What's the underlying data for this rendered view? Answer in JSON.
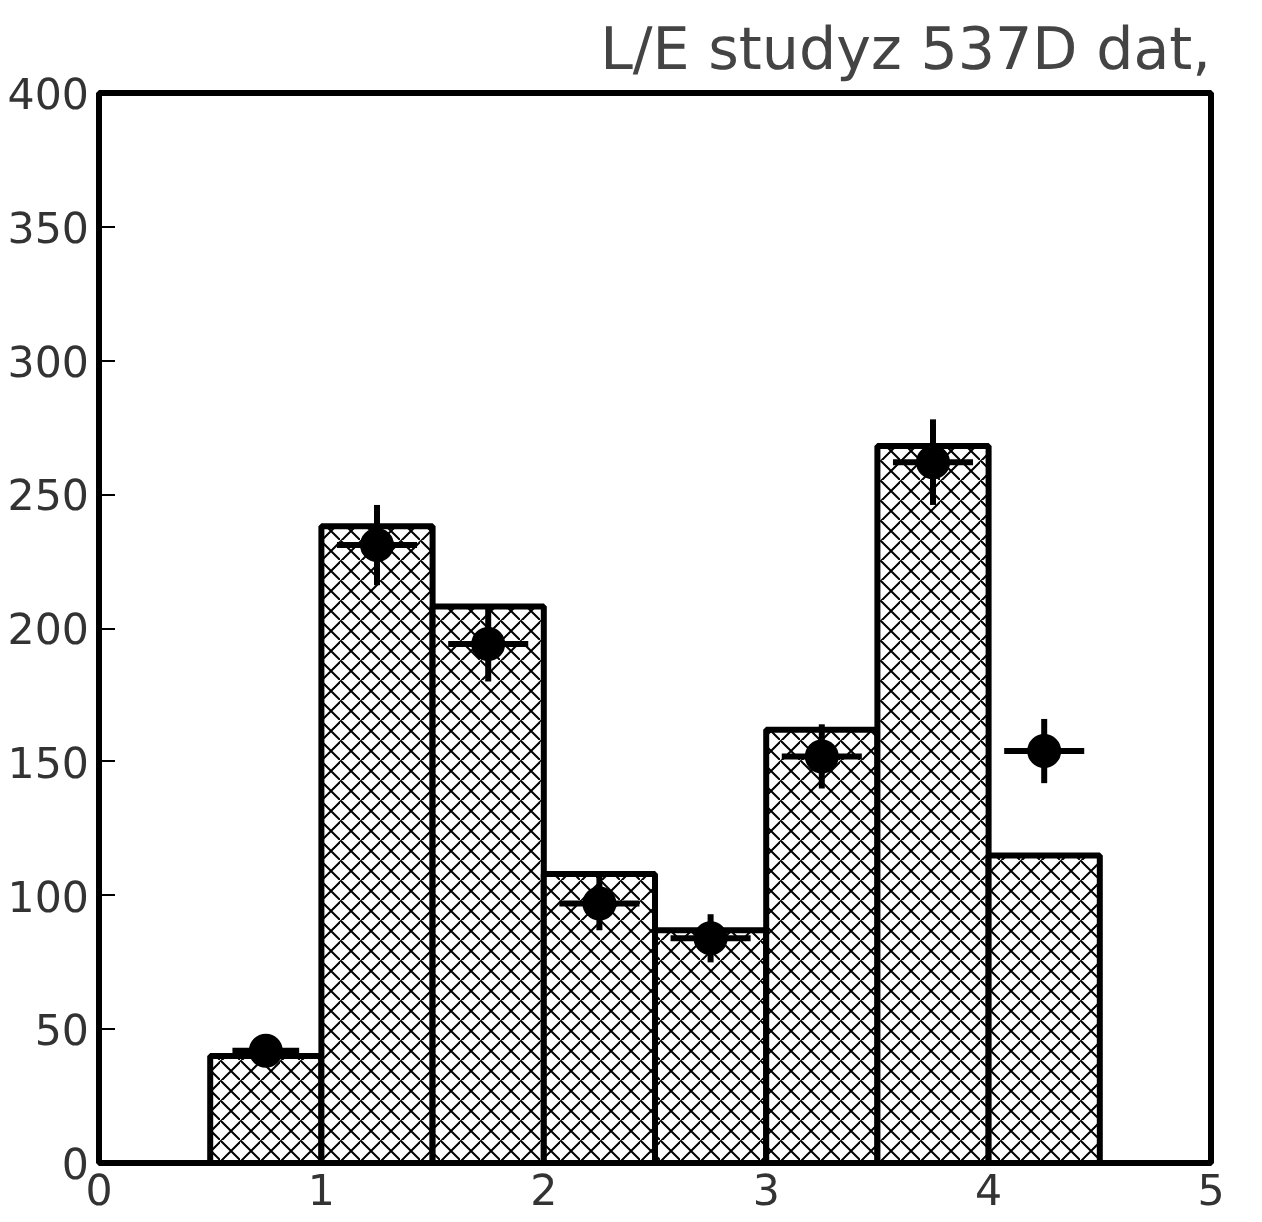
{
  "chart_data": {
    "type": "histogram",
    "title": "L/E studyz 537D dat,",
    "series": [
      {
        "color": "#000000",
        "bins": [
          0,
          0.5,
          1,
          1.5,
          2,
          2.5,
          3,
          3.5,
          4,
          4.5
        ],
        "values": [
          0,
          40,
          238,
          208,
          108,
          87,
          162,
          268,
          115
        ]
      },
      {
        "type": "scatter",
        "color": "#000000",
        "x": [
          0.75,
          1.25,
          1.75,
          2.25,
          2.75,
          3.25,
          3.75,
          4.25
        ],
        "values": [
          42,
          231,
          194,
          97,
          84,
          152,
          262,
          154
        ],
        "errors": [
          6,
          15,
          14,
          10,
          9,
          12,
          16,
          12
        ],
        "xerrors": [
          0.15,
          0.18,
          0.18,
          0.18,
          0.18,
          0.18,
          0.18,
          0.18
        ]
      }
    ],
    "xlim": [
      0,
      5
    ],
    "ylim": [
      0,
      400
    ],
    "xticks": [
      0,
      1,
      2,
      3,
      4,
      5
    ],
    "yticks": [
      0,
      50,
      100,
      150,
      200,
      250,
      300,
      350,
      400
    ],
    "grid": false,
    "marker": "circle"
  }
}
